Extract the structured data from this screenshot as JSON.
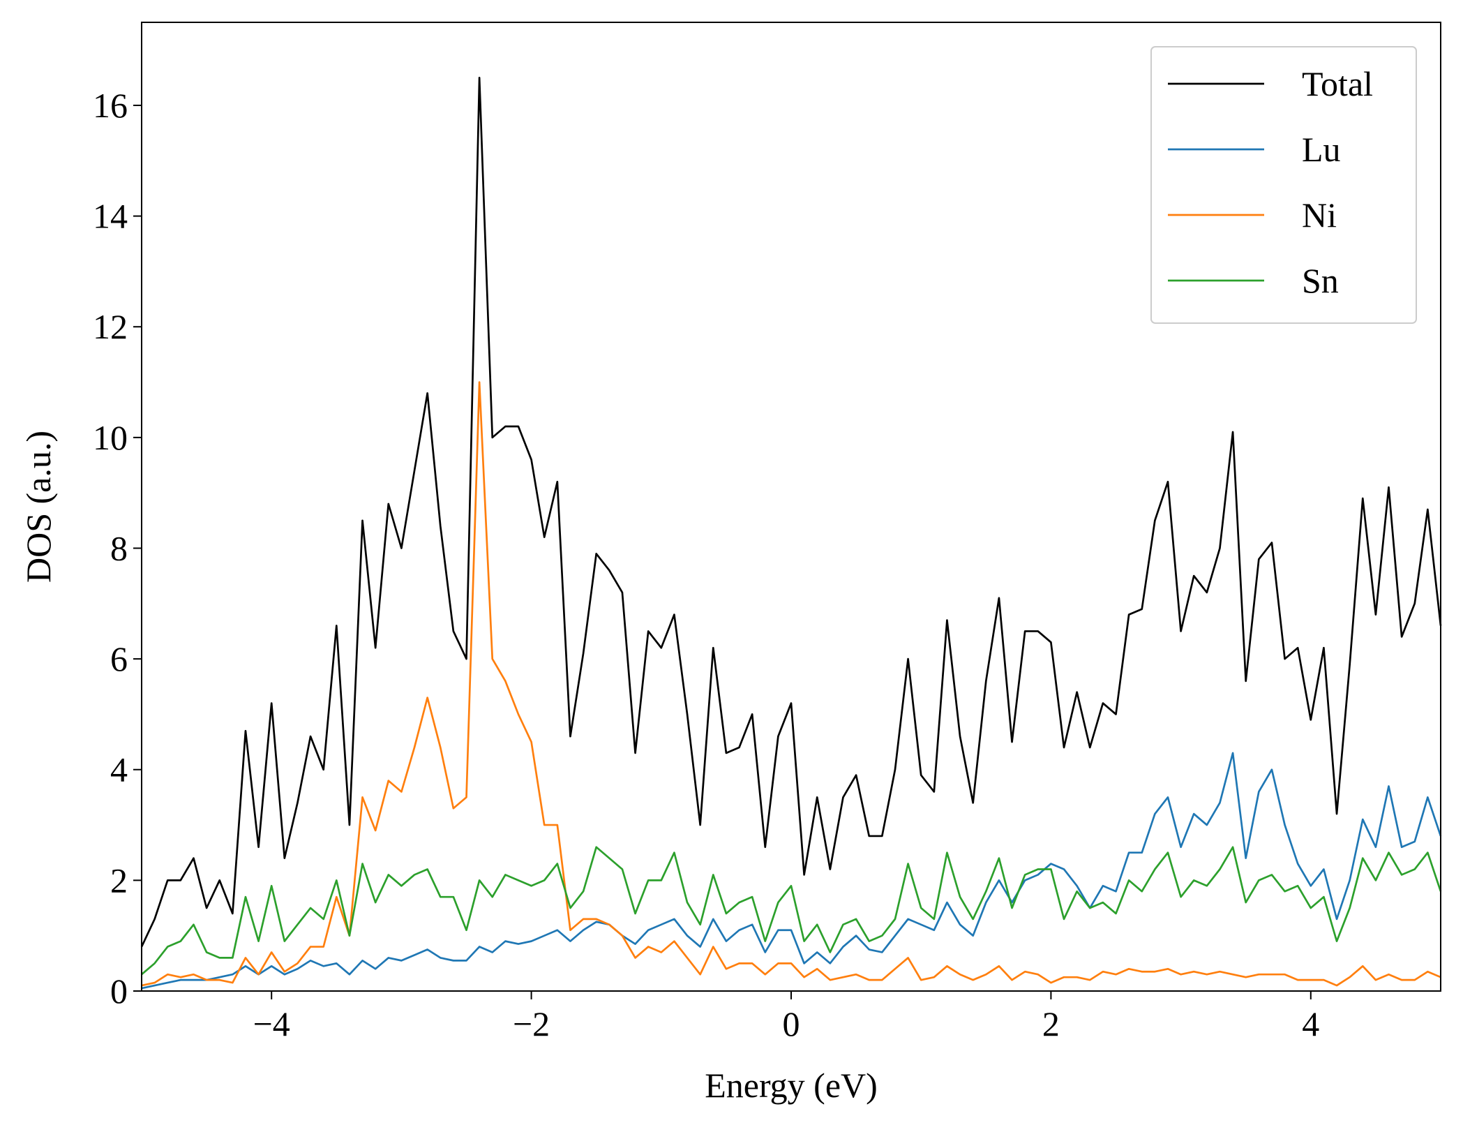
{
  "chart_data": {
    "type": "line",
    "xlabel": "Energy (eV)",
    "ylabel": "DOS (a.u.)",
    "xlim": [
      -5,
      5
    ],
    "ylim": [
      0,
      17.5
    ],
    "xticks": [
      {
        "value": -4,
        "label": "−4"
      },
      {
        "value": -2,
        "label": "−2"
      },
      0,
      2,
      4
    ],
    "yticks": [
      0,
      2,
      4,
      6,
      8,
      10,
      12,
      14,
      16
    ],
    "legend": "upper right",
    "x": [
      -5,
      -4.9,
      -4.8,
      -4.7,
      -4.6,
      -4.5,
      -4.4,
      -4.3,
      -4.2,
      -4.1,
      -4,
      -3.9,
      -3.8,
      -3.7,
      -3.6,
      -3.5,
      -3.4,
      -3.3,
      -3.2,
      -3.1,
      -3,
      -2.9,
      -2.8,
      -2.7,
      -2.6,
      -2.5,
      -2.4,
      -2.3,
      -2.2,
      -2.1,
      -2,
      -1.9,
      -1.8,
      -1.7,
      -1.6,
      -1.5,
      -1.4,
      -1.3,
      -1.2,
      -1.1,
      -1,
      -0.9,
      -0.8,
      -0.7,
      -0.6,
      -0.5,
      -0.4,
      -0.3,
      -0.2,
      -0.1,
      0,
      0.1,
      0.2,
      0.3,
      0.4,
      0.5,
      0.6,
      0.7,
      0.8,
      0.9,
      1,
      1.1,
      1.2,
      1.3,
      1.4,
      1.5,
      1.6,
      1.7,
      1.8,
      1.9,
      2,
      2.1,
      2.2,
      2.3,
      2.4,
      2.5,
      2.6,
      2.7,
      2.8,
      2.9,
      3,
      3.1,
      3.2,
      3.3,
      3.4,
      3.5,
      3.6,
      3.7,
      3.8,
      3.9,
      4,
      4.1,
      4.2,
      4.3,
      4.4,
      4.5,
      4.6,
      4.7,
      4.8,
      4.9,
      5
    ],
    "series": [
      {
        "name": "Total",
        "color": "#000000",
        "values": [
          0.8,
          1.3,
          2.0,
          2.0,
          2.4,
          1.5,
          2.0,
          1.4,
          4.7,
          2.6,
          5.2,
          2.4,
          3.4,
          4.6,
          4.0,
          6.6,
          3.0,
          8.5,
          6.2,
          8.8,
          8.0,
          9.4,
          10.8,
          8.4,
          6.5,
          6.0,
          16.5,
          10.0,
          10.2,
          10.2,
          9.6,
          8.2,
          9.2,
          4.6,
          6.1,
          7.9,
          7.6,
          7.2,
          4.3,
          6.5,
          6.2,
          6.8,
          5.0,
          3.0,
          6.2,
          4.3,
          4.4,
          5.0,
          2.6,
          4.6,
          5.2,
          2.1,
          3.5,
          2.2,
          3.5,
          3.9,
          2.8,
          2.8,
          4.0,
          6.0,
          3.9,
          3.6,
          6.7,
          4.6,
          3.4,
          5.6,
          7.1,
          4.5,
          6.5,
          6.5,
          6.3,
          4.4,
          5.4,
          4.4,
          5.2,
          5.0,
          6.8,
          6.9,
          8.5,
          9.2,
          6.5,
          7.5,
          7.2,
          8.0,
          10.1,
          5.6,
          7.8,
          8.1,
          6.0,
          6.2,
          4.9,
          6.2,
          3.2,
          5.9,
          8.9,
          6.8,
          9.1,
          6.4,
          7.0,
          8.7,
          6.6
        ]
      },
      {
        "name": "Lu",
        "color": "#1f77b4",
        "values": [
          0.05,
          0.1,
          0.15,
          0.2,
          0.2,
          0.2,
          0.25,
          0.3,
          0.45,
          0.3,
          0.45,
          0.3,
          0.4,
          0.55,
          0.45,
          0.5,
          0.3,
          0.55,
          0.4,
          0.6,
          0.55,
          0.65,
          0.75,
          0.6,
          0.55,
          0.55,
          0.8,
          0.7,
          0.9,
          0.85,
          0.9,
          1.0,
          1.1,
          0.9,
          1.1,
          1.25,
          1.2,
          1.0,
          0.85,
          1.1,
          1.2,
          1.3,
          1.0,
          0.8,
          1.3,
          0.9,
          1.1,
          1.2,
          0.7,
          1.1,
          1.1,
          0.5,
          0.7,
          0.5,
          0.8,
          1.0,
          0.75,
          0.7,
          1.0,
          1.3,
          1.2,
          1.1,
          1.6,
          1.2,
          1.0,
          1.6,
          2.0,
          1.6,
          2.0,
          2.1,
          2.3,
          2.2,
          1.9,
          1.5,
          1.9,
          1.8,
          2.5,
          2.5,
          3.2,
          3.5,
          2.6,
          3.2,
          3.0,
          3.4,
          4.3,
          2.4,
          3.6,
          4.0,
          3.0,
          2.3,
          1.9,
          2.2,
          1.3,
          2.0,
          3.1,
          2.6,
          3.7,
          2.6,
          2.7,
          3.5,
          2.8
        ]
      },
      {
        "name": "Ni",
        "color": "#ff7f0e",
        "values": [
          0.1,
          0.15,
          0.3,
          0.25,
          0.3,
          0.2,
          0.2,
          0.15,
          0.6,
          0.3,
          0.7,
          0.35,
          0.5,
          0.8,
          0.8,
          1.7,
          1.0,
          3.5,
          2.9,
          3.8,
          3.6,
          4.4,
          5.3,
          4.4,
          3.3,
          3.5,
          11.0,
          6.0,
          5.6,
          5.0,
          4.5,
          3.0,
          3.0,
          1.1,
          1.3,
          1.3,
          1.2,
          1.0,
          0.6,
          0.8,
          0.7,
          0.9,
          0.6,
          0.3,
          0.8,
          0.4,
          0.5,
          0.5,
          0.3,
          0.5,
          0.5,
          0.25,
          0.4,
          0.2,
          0.25,
          0.3,
          0.2,
          0.2,
          0.4,
          0.6,
          0.2,
          0.25,
          0.45,
          0.3,
          0.2,
          0.3,
          0.45,
          0.2,
          0.35,
          0.3,
          0.15,
          0.25,
          0.25,
          0.2,
          0.35,
          0.3,
          0.4,
          0.35,
          0.35,
          0.4,
          0.3,
          0.35,
          0.3,
          0.35,
          0.3,
          0.25,
          0.3,
          0.3,
          0.3,
          0.2,
          0.2,
          0.2,
          0.1,
          0.25,
          0.45,
          0.2,
          0.3,
          0.2,
          0.2,
          0.35,
          0.25
        ]
      },
      {
        "name": "Sn",
        "color": "#2ca02c",
        "values": [
          0.3,
          0.5,
          0.8,
          0.9,
          1.2,
          0.7,
          0.6,
          0.6,
          1.7,
          0.9,
          1.9,
          0.9,
          1.2,
          1.5,
          1.3,
          2.0,
          1.0,
          2.3,
          1.6,
          2.1,
          1.9,
          2.1,
          2.2,
          1.7,
          1.7,
          1.1,
          2.0,
          1.7,
          2.1,
          2.0,
          1.9,
          2.0,
          2.3,
          1.5,
          1.8,
          2.6,
          2.4,
          2.2,
          1.4,
          2.0,
          2.0,
          2.5,
          1.6,
          1.2,
          2.1,
          1.4,
          1.6,
          1.7,
          0.9,
          1.6,
          1.9,
          0.9,
          1.2,
          0.7,
          1.2,
          1.3,
          0.9,
          1.0,
          1.3,
          2.3,
          1.5,
          1.3,
          2.5,
          1.7,
          1.3,
          1.8,
          2.4,
          1.5,
          2.1,
          2.2,
          2.2,
          1.3,
          1.8,
          1.5,
          1.6,
          1.4,
          2.0,
          1.8,
          2.2,
          2.5,
          1.7,
          2.0,
          1.9,
          2.2,
          2.6,
          1.6,
          2.0,
          2.1,
          1.8,
          1.9,
          1.5,
          1.7,
          0.9,
          1.5,
          2.4,
          2.0,
          2.5,
          2.1,
          2.2,
          2.5,
          1.8
        ]
      }
    ]
  }
}
